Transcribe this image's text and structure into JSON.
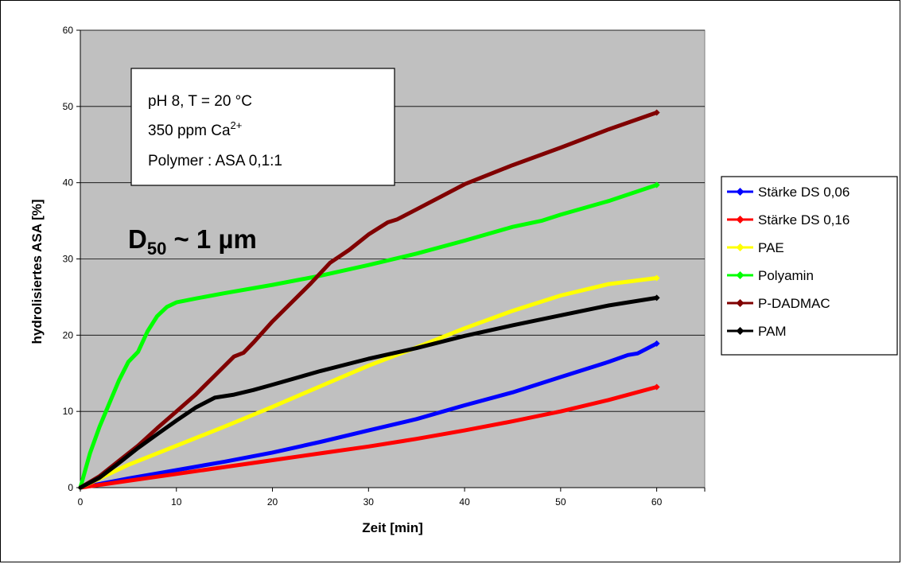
{
  "chart_data": {
    "type": "line",
    "xlabel": "Zeit [min]",
    "ylabel": "hydrolisiertes ASA [%]",
    "xlim": [
      0,
      65
    ],
    "ylim": [
      0,
      60
    ],
    "xticks": [
      "0",
      "10",
      "20",
      "30",
      "40",
      "50",
      "60"
    ],
    "yticks": [
      "0",
      "10",
      "20",
      "30",
      "40",
      "50",
      "60"
    ],
    "grid": "horizontal",
    "plot_background": "#c0c0c0",
    "legend_position": "right",
    "annotation": {
      "line1": "pH 8, T = 20 °C",
      "line2_main": "350 ppm Ca",
      "line2_sup": "2+",
      "line3": "Polymer : ASA 0,1:1"
    },
    "label": {
      "main": "D",
      "sub": "50",
      "rest": " ~ 1 µm"
    },
    "series": [
      {
        "name": "Stärke DS 0,06",
        "color": "#0000ff",
        "x": [
          0,
          5,
          10,
          15,
          20,
          25,
          30,
          35,
          40,
          45,
          50,
          55,
          57,
          58,
          60
        ],
        "y": [
          0,
          1.2,
          2.3,
          3.4,
          4.6,
          6,
          7.5,
          9,
          10.8,
          12.5,
          14.5,
          16.5,
          17.4,
          17.6,
          18.9
        ]
      },
      {
        "name": "Stärke DS 0,16",
        "color": "#ff0000",
        "x": [
          0,
          5,
          10,
          15,
          20,
          25,
          30,
          35,
          40,
          45,
          50,
          55,
          60
        ],
        "y": [
          0,
          0.9,
          1.8,
          2.7,
          3.6,
          4.5,
          5.4,
          6.4,
          7.5,
          8.7,
          10,
          11.5,
          13.2
        ]
      },
      {
        "name": "PAE",
        "color": "#ffff00",
        "x": [
          0,
          5,
          10,
          15,
          20,
          25,
          30,
          35,
          40,
          45,
          50,
          55,
          60
        ],
        "y": [
          0,
          3,
          5.5,
          8,
          10.6,
          13.3,
          16,
          18.4,
          20.9,
          23.2,
          25.2,
          26.7,
          27.5
        ]
      },
      {
        "name": "Polyamin",
        "color": "#00ff00",
        "x": [
          0,
          1,
          2,
          3,
          4,
          5,
          6,
          7,
          8,
          9,
          10,
          12,
          15,
          20,
          25,
          30,
          35,
          40,
          45,
          48,
          50,
          55,
          60
        ],
        "y": [
          0,
          4.5,
          8,
          11,
          14,
          16.5,
          17.8,
          20.5,
          22.5,
          23.7,
          24.3,
          24.8,
          25.5,
          26.6,
          27.8,
          29.2,
          30.7,
          32.4,
          34.2,
          35,
          35.8,
          37.6,
          39.7
        ]
      },
      {
        "name": "P-DADMAC",
        "color": "#800000",
        "x": [
          0,
          2,
          4,
          6,
          8,
          10,
          12,
          14,
          16,
          17,
          18,
          20,
          22,
          24,
          26,
          28,
          30,
          32,
          33,
          35,
          40,
          45,
          50,
          55,
          60
        ],
        "y": [
          0,
          1.5,
          3.5,
          5.5,
          7.8,
          10,
          12.2,
          14.7,
          17.2,
          17.7,
          19,
          21.8,
          24.3,
          26.8,
          29.5,
          31.2,
          33.2,
          34.8,
          35.2,
          36.5,
          39.8,
          42.3,
          44.6,
          47,
          49.2
        ]
      },
      {
        "name": "PAM",
        "color": "#000000",
        "x": [
          0,
          2,
          4,
          6,
          8,
          10,
          12,
          14,
          16,
          18,
          20,
          25,
          30,
          35,
          40,
          45,
          50,
          55,
          60
        ],
        "y": [
          0,
          1.3,
          3.2,
          5.2,
          7,
          8.8,
          10.5,
          11.8,
          12.2,
          12.8,
          13.5,
          15.3,
          16.9,
          18.3,
          19.9,
          21.3,
          22.6,
          23.9,
          24.9
        ]
      }
    ]
  }
}
